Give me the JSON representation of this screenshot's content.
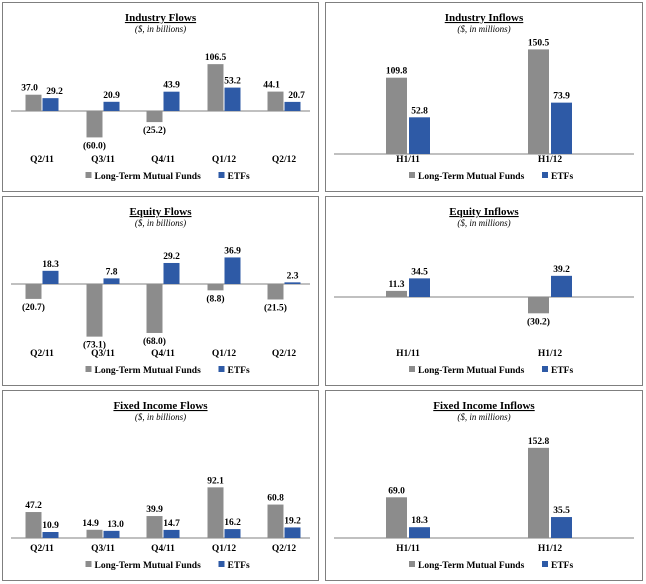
{
  "legend": {
    "series_a": "Long-Term Mutual Funds",
    "series_b": "ETFs"
  },
  "colors": {
    "series_a": "#8c8c8c",
    "series_b": "#2e5aa6",
    "axis": "#808080",
    "border": "#7f7f7f"
  },
  "chart_data": [
    {
      "id": "industry-flows",
      "type": "bar",
      "title": "Industry Flows",
      "subtitle": "($, in billions)",
      "categories": [
        "Q2/11",
        "Q3/11",
        "Q4/11",
        "Q1/12",
        "Q2/12"
      ],
      "series": [
        {
          "name": "Long-Term Mutual Funds",
          "values": [
            37.0,
            -60.0,
            -25.2,
            106.5,
            44.1
          ],
          "labels": [
            "37.0",
            "(60.0)",
            "(25.2)",
            "106.5",
            "44.1"
          ]
        },
        {
          "name": "ETFs",
          "values": [
            29.2,
            20.9,
            43.9,
            53.2,
            20.7
          ],
          "labels": [
            "29.2",
            "20.9",
            "43.9",
            "53.2",
            "20.7"
          ]
        }
      ],
      "legend_position": "bottom"
    },
    {
      "id": "industry-inflows",
      "type": "bar",
      "title": "Industry Inflows",
      "subtitle": "($, in millions)",
      "categories": [
        "H1/11",
        "H1/12"
      ],
      "series": [
        {
          "name": "Long-Term Mutual Funds",
          "values": [
            109.8,
            150.5
          ],
          "labels": [
            "109.8",
            "150.5"
          ]
        },
        {
          "name": "ETFs",
          "values": [
            52.8,
            73.9
          ],
          "labels": [
            "52.8",
            "73.9"
          ]
        }
      ],
      "legend_position": "bottom"
    },
    {
      "id": "equity-flows",
      "type": "bar",
      "title": "Equity Flows",
      "subtitle": "($, in billions)",
      "categories": [
        "Q2/11",
        "Q3/11",
        "Q4/11",
        "Q1/12",
        "Q2/12"
      ],
      "series": [
        {
          "name": "Long-Term Mutual Funds",
          "values": [
            -20.7,
            -73.1,
            -68.0,
            -8.8,
            -21.5
          ],
          "labels": [
            "(20.7)",
            "(73.1)",
            "(68.0)",
            "(8.8)",
            "(21.5)"
          ]
        },
        {
          "name": "ETFs",
          "values": [
            18.3,
            7.8,
            29.2,
            36.9,
            2.3
          ],
          "labels": [
            "18.3",
            "7.8",
            "29.2",
            "36.9",
            "2.3"
          ]
        }
      ],
      "legend_position": "bottom"
    },
    {
      "id": "equity-inflows",
      "type": "bar",
      "title": "Equity Inflows",
      "subtitle": "($, in millions)",
      "categories": [
        "H1/11",
        "H1/12"
      ],
      "series": [
        {
          "name": "Long-Term Mutual Funds",
          "values": [
            11.3,
            -30.2
          ],
          "labels": [
            "11.3",
            "(30.2)"
          ]
        },
        {
          "name": "ETFs",
          "values": [
            34.5,
            39.2
          ],
          "labels": [
            "34.5",
            "39.2"
          ]
        }
      ],
      "legend_position": "bottom"
    },
    {
      "id": "fixed-income-flows",
      "type": "bar",
      "title": "Fixed Income Flows",
      "subtitle": "($, in billions)",
      "categories": [
        "Q2/11",
        "Q3/11",
        "Q4/11",
        "Q1/12",
        "Q2/12"
      ],
      "series": [
        {
          "name": "Long-Term Mutual Funds",
          "values": [
            47.2,
            14.9,
            39.9,
            92.1,
            60.8
          ],
          "labels": [
            "47.2",
            "14.9",
            "39.9",
            "92.1",
            "60.8"
          ]
        },
        {
          "name": "ETFs",
          "values": [
            10.9,
            13.0,
            14.7,
            16.2,
            19.2
          ],
          "labels": [
            "10.9",
            "13.0",
            "14.7",
            "16.2",
            "19.2"
          ]
        }
      ],
      "legend_position": "bottom"
    },
    {
      "id": "fixed-income-inflows",
      "type": "bar",
      "title": "Fixed Income Inflows",
      "subtitle": "($, in millions)",
      "categories": [
        "H1/11",
        "H1/12"
      ],
      "series": [
        {
          "name": "Long-Term Mutual Funds",
          "values": [
            69.0,
            152.8
          ],
          "labels": [
            "69.0",
            "152.8"
          ]
        },
        {
          "name": "ETFs",
          "values": [
            18.3,
            35.5
          ],
          "labels": [
            "18.3",
            "35.5"
          ]
        }
      ],
      "legend_position": "bottom"
    }
  ]
}
